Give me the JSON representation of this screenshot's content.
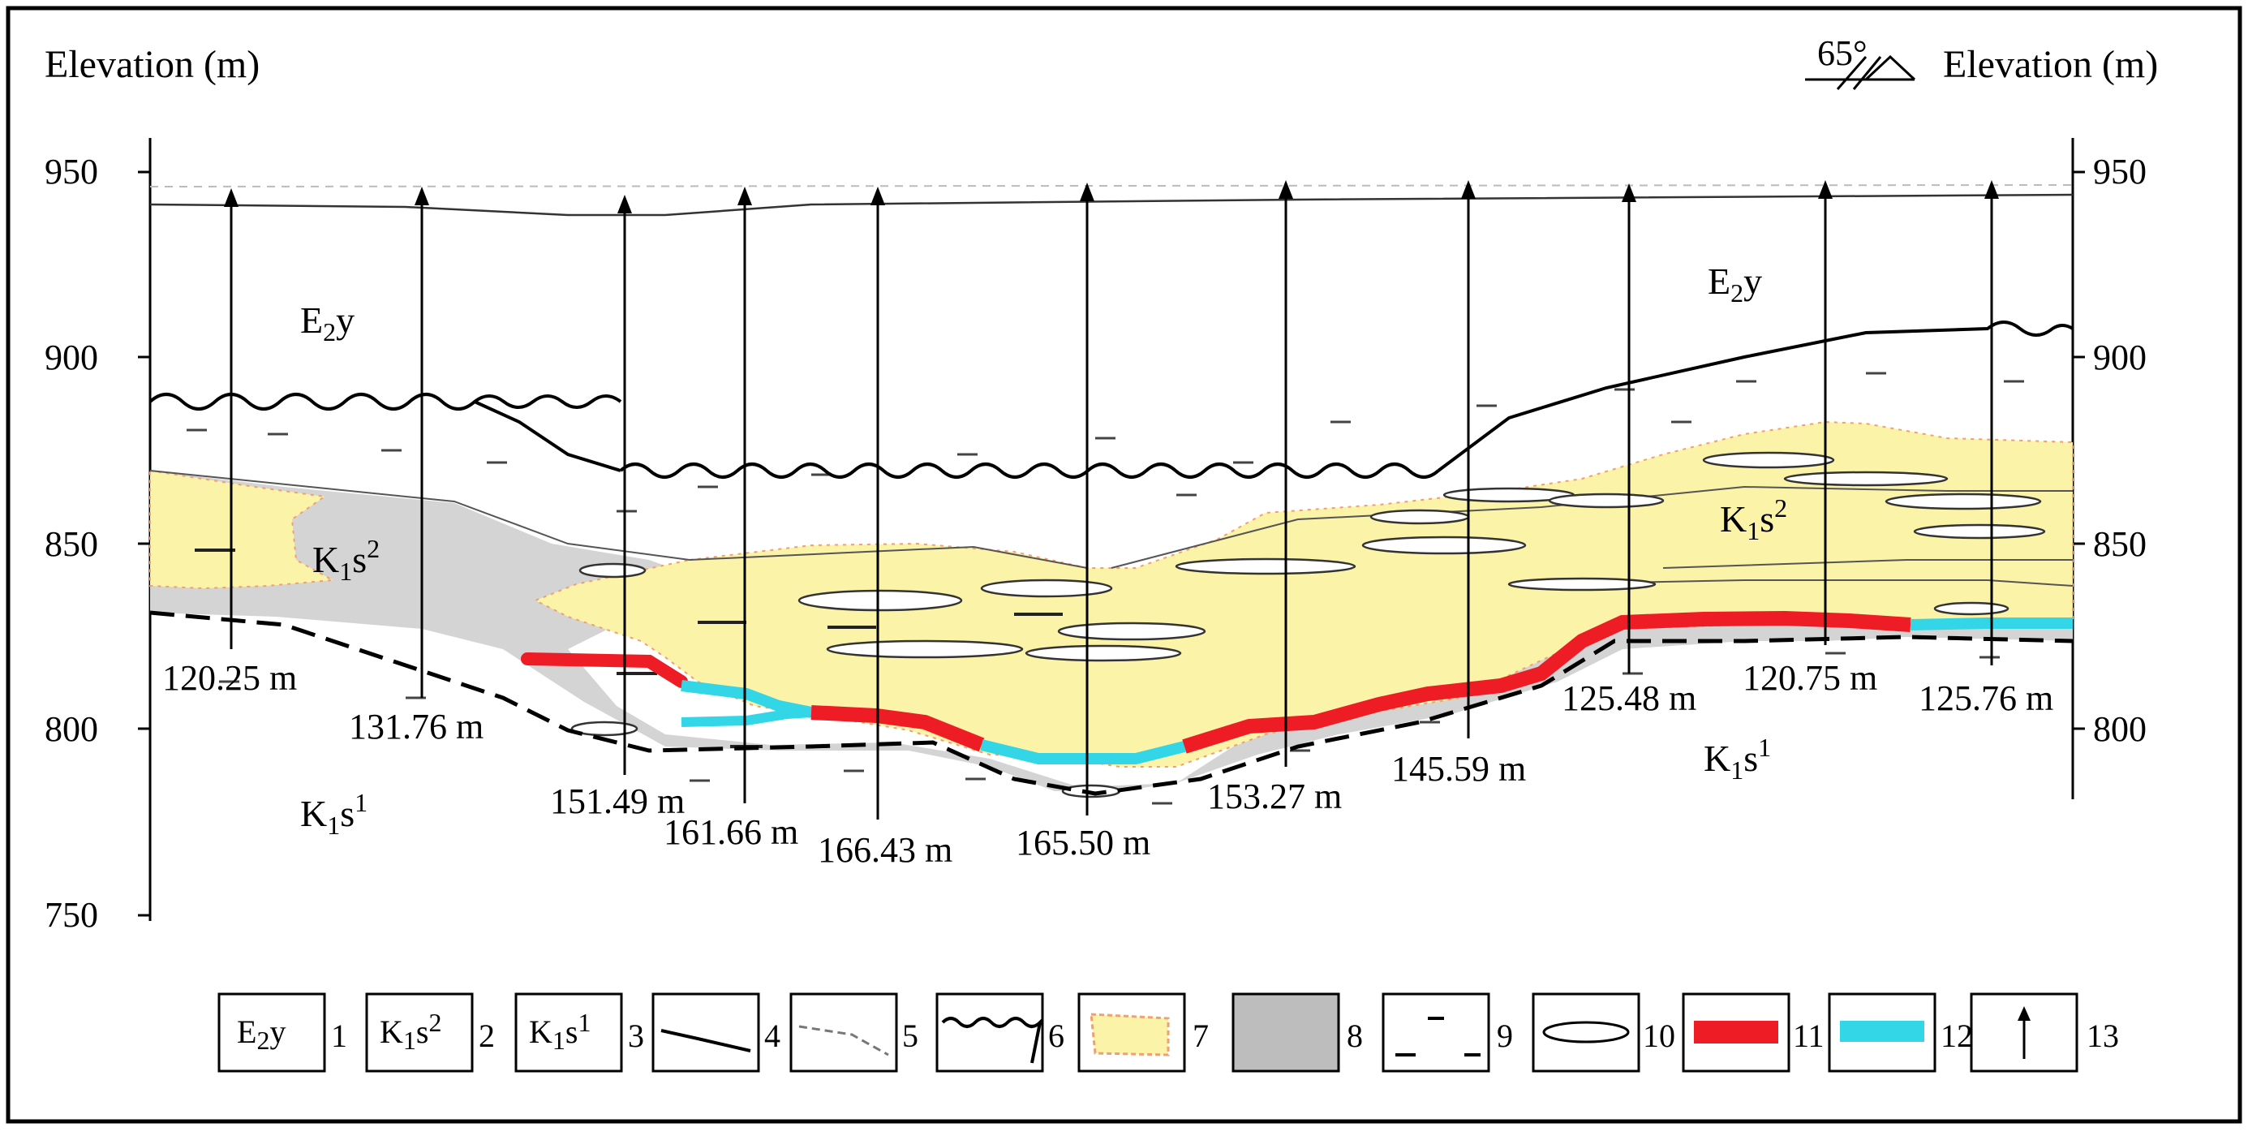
{
  "axis": {
    "left_title": "Elevation (m)",
    "right_title": "Elevation (m)",
    "ticks": [
      "950",
      "900",
      "850",
      "800",
      "750"
    ],
    "right_ticks": [
      "950",
      "900",
      "850",
      "800"
    ]
  },
  "dip_symbol": "65°",
  "units": {
    "e2y_top": {
      "base": "E",
      "sub": "2",
      "rest": "y"
    },
    "e2y_right": {
      "base": "E",
      "sub": "2",
      "rest": "y"
    },
    "k1s2_left": {
      "base": "K",
      "sub": "1",
      "rest": "s",
      "sup": "2"
    },
    "k1s2_right": {
      "base": "K",
      "sub": "1",
      "rest": "s",
      "sup": "2"
    },
    "k1s1_left": {
      "base": "K",
      "sub": "1",
      "rest": "s",
      "sup": "1"
    },
    "k1s1_right": {
      "base": "K",
      "sub": "1",
      "rest": "s",
      "sup": "1"
    }
  },
  "boreholes": [
    "120.25 m",
    "131.76 m",
    "151.49 m",
    "161.66 m",
    "166.43 m",
    "165.50 m",
    "153.27 m",
    "145.59 m",
    "125.48 m",
    "120.75 m",
    "125.76 m"
  ],
  "legend": [
    {
      "num": "1",
      "symbol": "E2y"
    },
    {
      "num": "2",
      "symbol": "K1s2"
    },
    {
      "num": "3",
      "symbol": "K1s1"
    },
    {
      "num": "4",
      "symbol": "solid-line"
    },
    {
      "num": "5",
      "symbol": "dashed-line"
    },
    {
      "num": "6",
      "symbol": "wavy-line"
    },
    {
      "num": "7",
      "symbol": "yellow-sand"
    },
    {
      "num": "8",
      "symbol": "gray-fill"
    },
    {
      "num": "9",
      "symbol": "dash-pattern"
    },
    {
      "num": "10",
      "symbol": "lens"
    },
    {
      "num": "11",
      "symbol": "red-bar"
    },
    {
      "num": "12",
      "symbol": "cyan-bar"
    },
    {
      "num": "13",
      "symbol": "arrow-up"
    }
  ],
  "colors": {
    "yellow_sand": "#fbf3a8",
    "gray_mudstone": "#d4d4d4",
    "red_ore": "#ee1c24",
    "cyan_ore": "#33d6e6",
    "orange_edge": "#f0a070"
  }
}
